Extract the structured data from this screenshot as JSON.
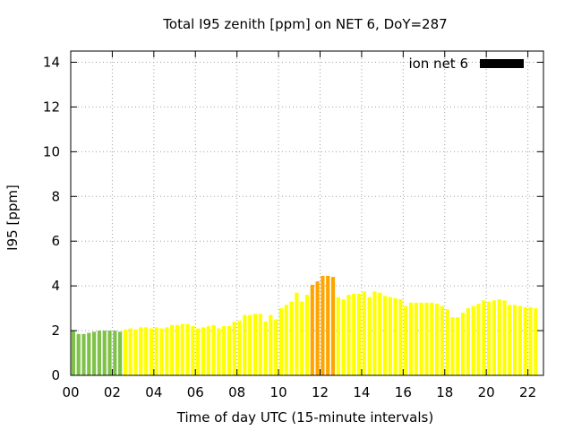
{
  "chart_data": {
    "type": "bar",
    "title": "Total I95 zenith [ppm] on NET 6, DoY=287",
    "xlabel": "Time of day UTC (15-minute intervals)",
    "ylabel": "I95 [ppm]",
    "xlim": [
      0,
      22.75
    ],
    "ylim": [
      0,
      14.5
    ],
    "grid": true,
    "legend": {
      "label": "ion net 6",
      "position": "top-right",
      "color": "#000000"
    },
    "x_ticks": [
      {
        "value": 0,
        "label": "00"
      },
      {
        "value": 2,
        "label": "02"
      },
      {
        "value": 4,
        "label": "04"
      },
      {
        "value": 6,
        "label": "06"
      },
      {
        "value": 8,
        "label": "08"
      },
      {
        "value": 10,
        "label": "10"
      },
      {
        "value": 12,
        "label": "12"
      },
      {
        "value": 14,
        "label": "14"
      },
      {
        "value": 16,
        "label": "16"
      },
      {
        "value": 18,
        "label": "18"
      },
      {
        "value": 20,
        "label": "20"
      },
      {
        "value": 22,
        "label": "22"
      }
    ],
    "y_ticks": [
      {
        "value": 0,
        "label": "0"
      },
      {
        "value": 2,
        "label": "2"
      },
      {
        "value": 4,
        "label": "4"
      },
      {
        "value": 6,
        "label": "6"
      },
      {
        "value": 8,
        "label": "8"
      },
      {
        "value": 10,
        "label": "10"
      },
      {
        "value": 12,
        "label": "12"
      },
      {
        "value": 14,
        "label": "14"
      }
    ],
    "interval_hours": 0.25,
    "color_scale": [
      {
        "max": 2.0,
        "color": "#7fc24a"
      },
      {
        "max": 4.0,
        "color": "#ffff00"
      },
      {
        "max": 99,
        "color": "#ffa500"
      }
    ],
    "values": [
      2.0,
      1.85,
      1.85,
      1.9,
      1.95,
      2.0,
      2.0,
      2.0,
      2.0,
      1.95,
      2.05,
      2.1,
      2.05,
      2.15,
      2.15,
      2.1,
      2.15,
      2.1,
      2.15,
      2.25,
      2.25,
      2.3,
      2.3,
      2.2,
      2.1,
      2.15,
      2.2,
      2.25,
      2.1,
      2.2,
      2.2,
      2.4,
      2.45,
      2.7,
      2.7,
      2.75,
      2.75,
      2.4,
      2.7,
      2.5,
      3.0,
      3.15,
      3.3,
      3.7,
      3.3,
      3.6,
      4.05,
      4.2,
      4.45,
      4.45,
      4.4,
      3.5,
      3.4,
      3.6,
      3.65,
      3.65,
      3.75,
      3.5,
      3.75,
      3.7,
      3.55,
      3.5,
      3.45,
      3.4,
      3.1,
      3.25,
      3.25,
      3.25,
      3.25,
      3.25,
      3.2,
      3.1,
      2.95,
      2.6,
      2.6,
      2.8,
      3.0,
      3.1,
      3.2,
      3.35,
      3.3,
      3.35,
      3.4,
      3.35,
      3.15,
      3.15,
      3.1,
      3.05,
      3.05,
      3.0
    ]
  }
}
